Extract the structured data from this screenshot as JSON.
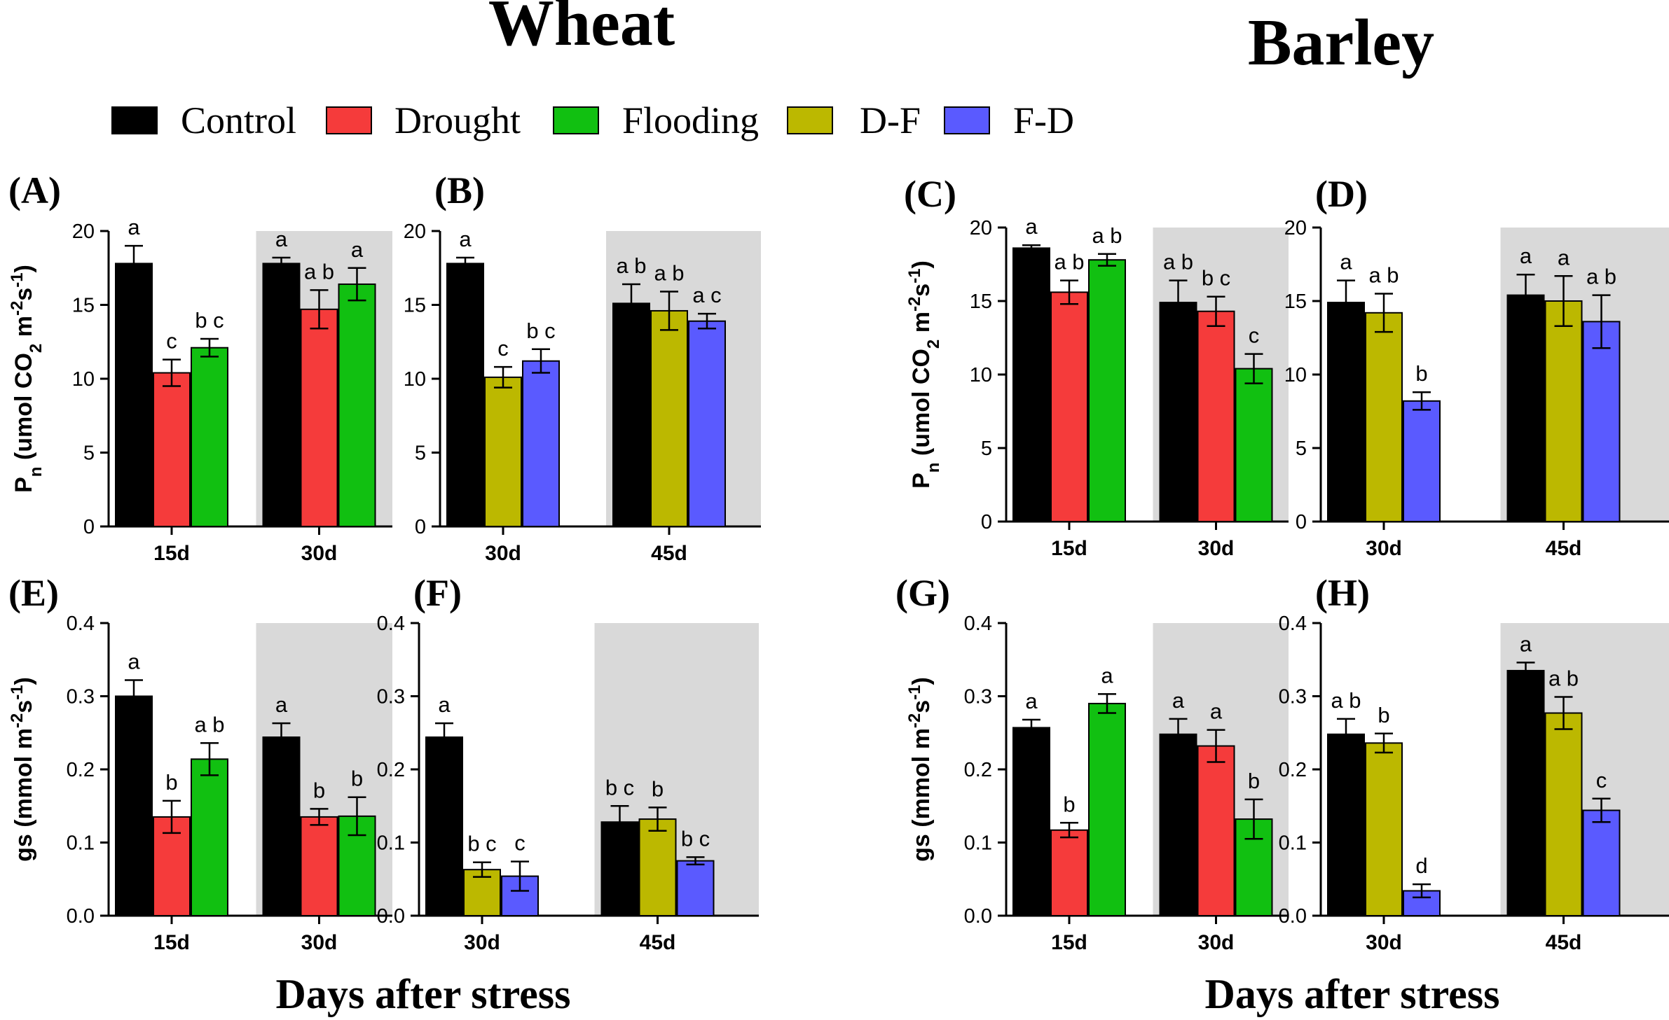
{
  "figure": {
    "title_wheat": "Wheat",
    "title_barley": "Barley",
    "xlabel_left": "Days after stress",
    "xlabel_right": "Days after stress"
  },
  "legend": [
    {
      "label": "Control",
      "color": "#000000"
    },
    {
      "label": "Drought",
      "color": "#f53b3b"
    },
    {
      "label": "Flooding",
      "color": "#11c011"
    },
    {
      "label": "D-F",
      "color": "#bcb800"
    },
    {
      "label": "F-D",
      "color": "#5a5aff"
    }
  ],
  "chart_data": [
    {
      "panel": "(A)",
      "type": "bar",
      "ylim": [
        0,
        20
      ],
      "yticks": [
        "0",
        "5",
        "10",
        "15",
        "20"
      ],
      "ylabel": "Pn",
      "shaded_group": 1,
      "groups": [
        {
          "label": "15d",
          "bars": [
            {
              "series": "Control",
              "value": 17.8,
              "err": 1.2,
              "letter": "a"
            },
            {
              "series": "Drought",
              "value": 10.4,
              "err": 0.9,
              "letter": "c"
            },
            {
              "series": "Flooding",
              "value": 12.1,
              "err": 0.6,
              "letter": "b c"
            }
          ]
        },
        {
          "label": "30d",
          "bars": [
            {
              "series": "Control",
              "value": 17.8,
              "err": 0.4,
              "letter": "a"
            },
            {
              "series": "Drought",
              "value": 14.7,
              "err": 1.3,
              "letter": "a b"
            },
            {
              "series": "Flooding",
              "value": 16.4,
              "err": 1.1,
              "letter": "a"
            }
          ]
        }
      ]
    },
    {
      "panel": "(B)",
      "type": "bar",
      "ylim": [
        0,
        20
      ],
      "yticks": [
        "0",
        "5",
        "10",
        "15",
        "20"
      ],
      "ylabel": "",
      "shaded_group": 1,
      "groups": [
        {
          "label": "30d",
          "bars": [
            {
              "series": "Control",
              "value": 17.8,
              "err": 0.4,
              "letter": "a"
            },
            {
              "series": "D-F",
              "value": 10.1,
              "err": 0.7,
              "letter": "c"
            },
            {
              "series": "F-D",
              "value": 11.2,
              "err": 0.8,
              "letter": "b c"
            }
          ]
        },
        {
          "label": "45d",
          "bars": [
            {
              "series": "Control",
              "value": 15.1,
              "err": 1.3,
              "letter": "a b"
            },
            {
              "series": "D-F",
              "value": 14.6,
              "err": 1.3,
              "letter": "a b"
            },
            {
              "series": "F-D",
              "value": 13.9,
              "err": 0.5,
              "letter": "a c"
            }
          ]
        }
      ]
    },
    {
      "panel": "(C)",
      "type": "bar",
      "ylim": [
        0,
        20
      ],
      "yticks": [
        "0",
        "5",
        "10",
        "15",
        "20"
      ],
      "ylabel": "Pn",
      "shaded_group": 1,
      "groups": [
        {
          "label": "15d",
          "bars": [
            {
              "series": "Control",
              "value": 18.6,
              "err": 0.2,
              "letter": "a"
            },
            {
              "series": "Drought",
              "value": 15.6,
              "err": 0.8,
              "letter": "a b"
            },
            {
              "series": "Flooding",
              "value": 17.8,
              "err": 0.4,
              "letter": "a b"
            }
          ]
        },
        {
          "label": "30d",
          "bars": [
            {
              "series": "Control",
              "value": 14.9,
              "err": 1.5,
              "letter": "a b"
            },
            {
              "series": "Drought",
              "value": 14.3,
              "err": 1.0,
              "letter": "b c"
            },
            {
              "series": "Flooding",
              "value": 10.4,
              "err": 1.0,
              "letter": "c"
            }
          ]
        }
      ]
    },
    {
      "panel": "(D)",
      "type": "bar",
      "ylim": [
        0,
        20
      ],
      "yticks": [
        "0",
        "5",
        "10",
        "15",
        "20"
      ],
      "ylabel": "",
      "shaded_group": 1,
      "groups": [
        {
          "label": "30d",
          "bars": [
            {
              "series": "Control",
              "value": 14.9,
              "err": 1.5,
              "letter": "a"
            },
            {
              "series": "D-F",
              "value": 14.2,
              "err": 1.3,
              "letter": "a b"
            },
            {
              "series": "F-D",
              "value": 8.2,
              "err": 0.6,
              "letter": "b"
            }
          ]
        },
        {
          "label": "45d",
          "bars": [
            {
              "series": "Control",
              "value": 15.4,
              "err": 1.4,
              "letter": "a"
            },
            {
              "series": "D-F",
              "value": 15.0,
              "err": 1.7,
              "letter": "a"
            },
            {
              "series": "F-D",
              "value": 13.6,
              "err": 1.8,
              "letter": "a b"
            }
          ]
        }
      ]
    },
    {
      "panel": "(E)",
      "type": "bar",
      "ylim": [
        0,
        0.4
      ],
      "yticks": [
        "0.0",
        "0.1",
        "0.2",
        "0.3",
        "0.4"
      ],
      "ylabel": "gs",
      "shaded_group": 1,
      "groups": [
        {
          "label": "15d",
          "bars": [
            {
              "series": "Control",
              "value": 0.3,
              "err": 0.022,
              "letter": "a"
            },
            {
              "series": "Drought",
              "value": 0.135,
              "err": 0.022,
              "letter": "b"
            },
            {
              "series": "Flooding",
              "value": 0.214,
              "err": 0.022,
              "letter": "a b"
            }
          ]
        },
        {
          "label": "30d",
          "bars": [
            {
              "series": "Control",
              "value": 0.244,
              "err": 0.019,
              "letter": "a"
            },
            {
              "series": "Drought",
              "value": 0.135,
              "err": 0.011,
              "letter": "b"
            },
            {
              "series": "Flooding",
              "value": 0.136,
              "err": 0.026,
              "letter": "b"
            }
          ]
        }
      ]
    },
    {
      "panel": "(F)",
      "type": "bar",
      "ylim": [
        0,
        0.4
      ],
      "yticks": [
        "0.0",
        "0.1",
        "0.2",
        "0.3",
        "0.4"
      ],
      "ylabel": "",
      "shaded_group": 1,
      "groups": [
        {
          "label": "30d",
          "bars": [
            {
              "series": "Control",
              "value": 0.244,
              "err": 0.019,
              "letter": "a"
            },
            {
              "series": "D-F",
              "value": 0.063,
              "err": 0.01,
              "letter": "b c"
            },
            {
              "series": "F-D",
              "value": 0.054,
              "err": 0.02,
              "letter": "c"
            }
          ]
        },
        {
          "label": "45d",
          "bars": [
            {
              "series": "Control",
              "value": 0.128,
              "err": 0.022,
              "letter": "b c"
            },
            {
              "series": "D-F",
              "value": 0.132,
              "err": 0.016,
              "letter": "b"
            },
            {
              "series": "F-D",
              "value": 0.075,
              "err": 0.005,
              "letter": "b c"
            }
          ]
        }
      ]
    },
    {
      "panel": "(G)",
      "type": "bar",
      "ylim": [
        0,
        0.4
      ],
      "yticks": [
        "0.0",
        "0.1",
        "0.2",
        "0.3",
        "0.4"
      ],
      "ylabel": "gs",
      "shaded_group": 1,
      "groups": [
        {
          "label": "15d",
          "bars": [
            {
              "series": "Control",
              "value": 0.257,
              "err": 0.011,
              "letter": "a"
            },
            {
              "series": "Drought",
              "value": 0.117,
              "err": 0.01,
              "letter": "b"
            },
            {
              "series": "Flooding",
              "value": 0.29,
              "err": 0.013,
              "letter": "a"
            }
          ]
        },
        {
          "label": "30d",
          "bars": [
            {
              "series": "Control",
              "value": 0.248,
              "err": 0.021,
              "letter": "a"
            },
            {
              "series": "Drought",
              "value": 0.232,
              "err": 0.022,
              "letter": "a"
            },
            {
              "series": "Flooding",
              "value": 0.132,
              "err": 0.027,
              "letter": "b"
            }
          ]
        }
      ]
    },
    {
      "panel": "(H)",
      "type": "bar",
      "ylim": [
        0,
        0.4
      ],
      "yticks": [
        "0.0",
        "0.1",
        "0.2",
        "0.3",
        "0.4"
      ],
      "ylabel": "",
      "shaded_group": 1,
      "groups": [
        {
          "label": "30d",
          "bars": [
            {
              "series": "Control",
              "value": 0.248,
              "err": 0.021,
              "letter": "a b"
            },
            {
              "series": "D-F",
              "value": 0.236,
              "err": 0.013,
              "letter": "b"
            },
            {
              "series": "F-D",
              "value": 0.034,
              "err": 0.009,
              "letter": "d"
            }
          ]
        },
        {
          "label": "45d",
          "bars": [
            {
              "series": "Control",
              "value": 0.335,
              "err": 0.011,
              "letter": "a"
            },
            {
              "series": "D-F",
              "value": 0.277,
              "err": 0.022,
              "letter": "a b"
            },
            {
              "series": "F-D",
              "value": 0.144,
              "err": 0.016,
              "letter": "c"
            }
          ]
        }
      ]
    }
  ]
}
